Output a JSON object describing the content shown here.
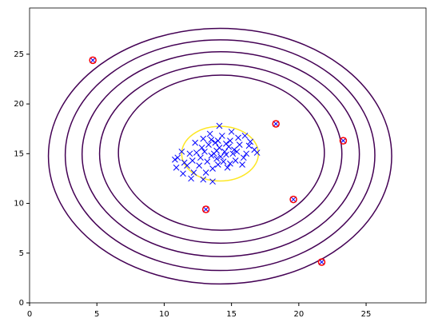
{
  "chart_data": {
    "type": "scatter",
    "xlim": [
      0,
      29.45
    ],
    "ylim": [
      0,
      29.65
    ],
    "xticks": [
      0,
      5,
      10,
      15,
      20,
      25
    ],
    "yticks": [
      0,
      5,
      10,
      15,
      20,
      25
    ],
    "grid": false,
    "contours": [
      {
        "cx": 14.15,
        "cy": 14.75,
        "rx": 12.75,
        "ry": 12.85,
        "color": "#440154"
      },
      {
        "cx": 14.15,
        "cy": 14.85,
        "rx": 11.5,
        "ry": 11.6,
        "color": "#440154"
      },
      {
        "cx": 14.2,
        "cy": 14.95,
        "rx": 10.3,
        "ry": 10.3,
        "color": "#440154"
      },
      {
        "cx": 14.2,
        "cy": 15.0,
        "rx": 9.0,
        "ry": 9.0,
        "color": "#440154"
      },
      {
        "cx": 14.25,
        "cy": 15.1,
        "rx": 7.65,
        "ry": 7.8,
        "color": "#440154"
      },
      {
        "cx": 14.15,
        "cy": 15.0,
        "rx": 2.85,
        "ry": 2.75,
        "color": "#fde725"
      }
    ],
    "series": [
      {
        "color": "#0000ff",
        "marker": "x",
        "x": [
          13.0,
          13.5,
          14.1,
          14.6,
          15.2,
          13.8,
          14.4,
          12.7,
          15.6,
          14.9,
          13.3,
          12.4,
          16.1,
          14.0,
          13.6,
          15.3,
          14.8,
          12.1,
          11.9,
          16.4,
          15.9,
          13.1,
          12.6,
          14.3,
          15.0,
          14.1,
          13.4,
          16.7,
          11.3,
          11.0,
          10.8,
          11.4,
          12.0,
          12.9,
          13.6,
          11.7,
          12.3,
          13.9,
          14.7,
          15.5,
          16.0,
          15.8,
          14.5,
          13.7,
          14.2,
          12.9,
          15.1,
          16.3,
          13.2,
          14.9,
          12.2,
          11.5,
          10.9,
          14.0,
          15.4,
          13.5,
          16.9,
          12.8,
          14.6,
          13.9,
          4.7,
          18.3,
          23.3,
          19.6,
          13.1,
          21.7
        ],
        "y": [
          15.2,
          14.8,
          15.6,
          14.9,
          15.4,
          16.1,
          14.2,
          14.6,
          15.9,
          16.3,
          15.9,
          15.1,
          15.0,
          13.9,
          13.5,
          14.3,
          15.7,
          14.3,
          15.0,
          16.2,
          14.6,
          13.1,
          13.8,
          16.8,
          17.2,
          17.8,
          17.0,
          15.4,
          15.2,
          14.6,
          14.4,
          13.0,
          12.5,
          12.4,
          12.2,
          13.8,
          16.1,
          14.5,
          13.6,
          16.6,
          16.8,
          13.9,
          15.2,
          15.0,
          14.7,
          16.5,
          15.0,
          15.8,
          14.2,
          14.0,
          13.1,
          14.1,
          13.6,
          16.3,
          15.2,
          16.4,
          15.1,
          15.6,
          16.0,
          15.3,
          24.4,
          18.0,
          16.3,
          10.4,
          9.4,
          4.1
        ]
      },
      {
        "color": "#ff0000",
        "marker": "o",
        "x": [
          4.7,
          18.3,
          23.3,
          19.6,
          13.1,
          21.7
        ],
        "y": [
          24.4,
          18.0,
          16.3,
          10.4,
          9.4,
          4.1
        ]
      }
    ]
  }
}
